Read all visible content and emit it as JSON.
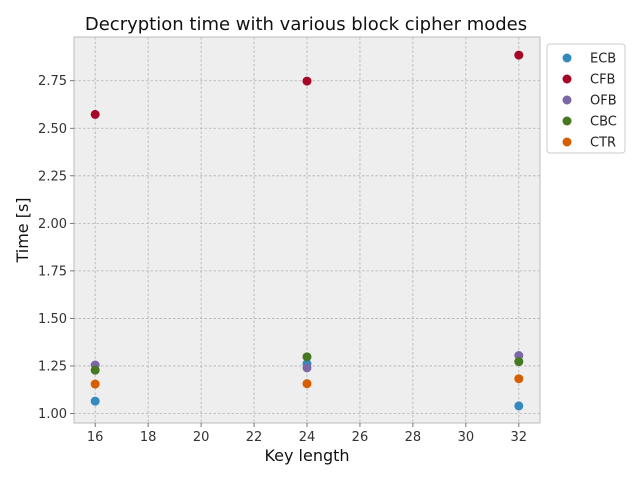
{
  "chart_data": {
    "type": "scatter",
    "title": "Decryption time with various block cipher modes",
    "xlabel": "Key length",
    "ylabel": "Time [s]",
    "xlim": [
      15.2,
      32.8
    ],
    "ylim": [
      0.95,
      2.98
    ],
    "xticks": [
      16,
      18,
      20,
      22,
      24,
      26,
      28,
      30,
      32
    ],
    "yticks": [
      1.0,
      1.25,
      1.5,
      1.75,
      2.0,
      2.25,
      2.5,
      2.75
    ],
    "ytick_labels": [
      "1.00",
      "1.25",
      "1.50",
      "1.75",
      "2.00",
      "2.25",
      "2.50",
      "2.75"
    ],
    "grid": true,
    "legend": "top-right, outside",
    "series": [
      {
        "name": "ECB",
        "color": "#348abd",
        "points": [
          [
            16,
            1.065
          ],
          [
            24,
            1.262
          ],
          [
            32,
            1.04
          ]
        ]
      },
      {
        "name": "CFB",
        "color": "#a60628",
        "points": [
          [
            16,
            2.573
          ],
          [
            24,
            2.748
          ],
          [
            32,
            2.885
          ]
        ]
      },
      {
        "name": "OFB",
        "color": "#7a68a6",
        "points": [
          [
            16,
            1.255
          ],
          [
            24,
            1.24
          ],
          [
            32,
            1.305
          ]
        ]
      },
      {
        "name": "CBC",
        "color": "#467821",
        "points": [
          [
            16,
            1.228
          ],
          [
            24,
            1.298
          ],
          [
            32,
            1.273
          ]
        ]
      },
      {
        "name": "CTR",
        "color": "#d55e00",
        "points": [
          [
            16,
            1.155
          ],
          [
            24,
            1.157
          ],
          [
            32,
            1.183
          ]
        ]
      }
    ]
  }
}
